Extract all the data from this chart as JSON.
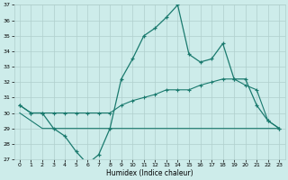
{
  "xlabel": "Humidex (Indice chaleur)",
  "x": [
    0,
    1,
    2,
    3,
    4,
    5,
    6,
    7,
    8,
    9,
    10,
    11,
    12,
    13,
    14,
    15,
    16,
    17,
    18,
    19,
    20,
    21,
    22,
    23
  ],
  "line1": [
    30.5,
    30.0,
    30.0,
    29.0,
    28.5,
    27.5,
    26.7,
    27.3,
    29.0,
    32.2,
    33.5,
    35.0,
    35.5,
    36.2,
    37.0,
    33.8,
    33.3,
    33.5,
    34.5,
    32.2,
    32.2,
    30.5,
    29.5,
    29.0
  ],
  "line2": [
    30.5,
    30.0,
    30.0,
    30.0,
    30.0,
    30.0,
    30.0,
    30.0,
    30.0,
    30.5,
    30.8,
    31.0,
    31.2,
    31.5,
    31.5,
    31.5,
    31.8,
    32.0,
    32.2,
    32.2,
    31.8,
    31.5,
    29.5,
    29.0
  ],
  "line3": [
    30.0,
    29.5,
    29.0,
    29.0,
    29.0,
    29.0,
    29.0,
    29.0,
    29.0,
    29.0,
    29.0,
    29.0,
    29.0,
    29.0,
    29.0,
    29.0,
    29.0,
    29.0,
    29.0,
    29.0,
    29.0,
    29.0,
    29.0,
    29.0
  ],
  "ylim": [
    27,
    37
  ],
  "xlim": [
    -0.5,
    23.5
  ],
  "yticks": [
    27,
    28,
    29,
    30,
    31,
    32,
    33,
    34,
    35,
    36,
    37
  ],
  "xticks": [
    0,
    1,
    2,
    3,
    4,
    5,
    6,
    7,
    8,
    9,
    10,
    11,
    12,
    13,
    14,
    15,
    16,
    17,
    18,
    19,
    20,
    21,
    22,
    23
  ],
  "line_color": "#1a7a6e",
  "bg_color": "#cdecea",
  "grid_color": "#b0cfcc",
  "fig_bg": "#cdecea"
}
